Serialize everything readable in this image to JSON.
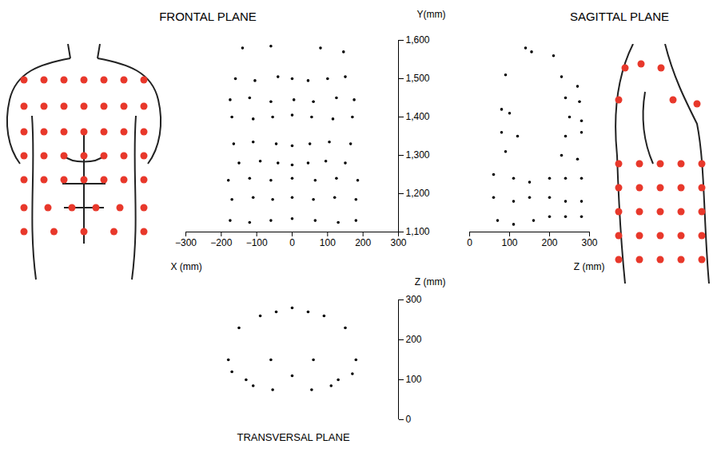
{
  "chart_data": [
    {
      "type": "scatter",
      "title": "FRONTAL PLANE",
      "x_label": "X (mm)",
      "y_label": "Y(mm)",
      "color": "#000000",
      "x": [
        -140,
        -60,
        80,
        145,
        -160,
        -105,
        -40,
        0,
        45,
        100,
        150,
        -175,
        -120,
        -60,
        5,
        60,
        125,
        175,
        -170,
        -110,
        -55,
        0,
        55,
        115,
        170,
        -165,
        -110,
        -45,
        0,
        50,
        105,
        165,
        -150,
        -90,
        -40,
        0,
        45,
        95,
        150,
        -180,
        -120,
        -60,
        0,
        65,
        125,
        185,
        -170,
        -110,
        -55,
        0,
        60,
        120,
        180,
        -175,
        -120,
        -60,
        0,
        65,
        130,
        180
      ],
      "values": [
        1580,
        1585,
        1580,
        1570,
        1500,
        1495,
        1505,
        1500,
        1495,
        1500,
        1505,
        1445,
        1450,
        1440,
        1445,
        1440,
        1450,
        1445,
        1400,
        1395,
        1400,
        1405,
        1400,
        1395,
        1400,
        1330,
        1335,
        1330,
        1325,
        1330,
        1335,
        1330,
        1280,
        1285,
        1280,
        1275,
        1280,
        1285,
        1280,
        1235,
        1240,
        1235,
        1240,
        1235,
        1240,
        1235,
        1185,
        1190,
        1185,
        1190,
        1185,
        1190,
        1185,
        1130,
        1125,
        1130,
        1135,
        1130,
        1125,
        1130
      ],
      "xlim": [
        -300,
        300
      ],
      "xticks": [
        {
          "value": -300,
          "label": "−300"
        },
        {
          "value": -200,
          "label": "−200"
        },
        {
          "value": -100,
          "label": "−100"
        },
        0,
        100,
        200,
        300
      ],
      "ylim": [
        1100,
        1600
      ],
      "yticks": [
        {
          "value": 1100,
          "label": "1,100"
        },
        {
          "value": 1200,
          "label": "1,200"
        },
        {
          "value": 1300,
          "label": "1,300"
        },
        {
          "value": 1400,
          "label": "1,400"
        },
        {
          "value": 1500,
          "label": "1,500"
        },
        {
          "value": 1600,
          "label": "1,600"
        }
      ]
    },
    {
      "type": "scatter",
      "title": "SAGITTAL PLANE",
      "x_label": "Z (mm)",
      "color": "#000000",
      "x": [
        140,
        155,
        210,
        90,
        230,
        270,
        80,
        240,
        275,
        100,
        250,
        280,
        80,
        120,
        240,
        280,
        90,
        230,
        270,
        60,
        110,
        150,
        200,
        240,
        280,
        60,
        110,
        150,
        200,
        240,
        280,
        70,
        110,
        160,
        200,
        240,
        280
      ],
      "values": [
        1580,
        1570,
        1560,
        1510,
        1505,
        1480,
        1420,
        1450,
        1440,
        1410,
        1400,
        1390,
        1360,
        1350,
        1350,
        1360,
        1310,
        1300,
        1290,
        1250,
        1240,
        1230,
        1240,
        1240,
        1240,
        1190,
        1180,
        1190,
        1190,
        1180,
        1180,
        1130,
        1120,
        1130,
        1140,
        1140,
        1140
      ],
      "xlim": [
        0,
        300
      ],
      "xticks": [
        0,
        100,
        200,
        300
      ],
      "ylim": [
        1100,
        1600
      ],
      "tick_labels": "x"
    },
    {
      "type": "scatter",
      "title": "TRANSVERSAL PLANE",
      "y_label": "Z (mm)",
      "color": "#000000",
      "x": [
        -90,
        -45,
        0,
        45,
        90,
        -150,
        150,
        -180,
        180,
        -170,
        170,
        -130,
        130,
        -110,
        110,
        -55,
        55,
        0,
        -60,
        60
      ],
      "values": [
        260,
        270,
        280,
        270,
        260,
        230,
        230,
        150,
        150,
        120,
        115,
        100,
        100,
        85,
        85,
        75,
        75,
        110,
        150,
        150
      ],
      "xlim": [
        -300,
        300
      ],
      "ylim": [
        0,
        300
      ],
      "yticks": [
        0,
        100,
        200,
        300
      ],
      "tick_labels": "y"
    }
  ]
}
